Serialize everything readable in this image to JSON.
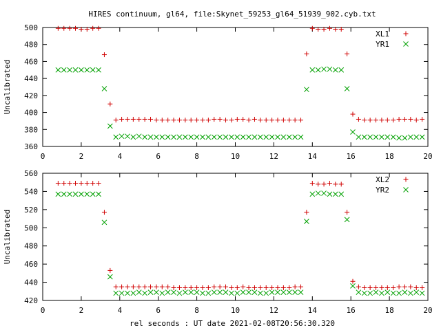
{
  "title": "HIRES continuum, gl64, file:Skynet_59253_gl64_51939_902.cyb.txt",
  "xlabel": "rel seconds : UT date 2021-02-08T20:56:30.320",
  "colors": {
    "first_series": "#d00000",
    "second_series": "#00a000",
    "axes": "#000000"
  },
  "chart_data": [
    {
      "type": "scatter",
      "ylabel": "Uncalibrated",
      "xlim": [
        0,
        20
      ],
      "ylim": [
        360,
        500
      ],
      "xticks": [
        0,
        2,
        4,
        6,
        8,
        10,
        12,
        14,
        16,
        18,
        20
      ],
      "yticks": [
        360,
        380,
        400,
        420,
        440,
        460,
        480,
        500
      ],
      "legend_position": "top-right",
      "series": [
        {
          "name": "XL1",
          "marker": "plus",
          "x": [
            0.8,
            1.1,
            1.4,
            1.7,
            2.0,
            2.3,
            2.6,
            2.9,
            3.2,
            3.5,
            3.8,
            4.1,
            4.4,
            4.7,
            5.0,
            5.3,
            5.6,
            5.9,
            6.2,
            6.5,
            6.8,
            7.1,
            7.4,
            7.7,
            8.0,
            8.3,
            8.6,
            8.9,
            9.2,
            9.5,
            9.8,
            10.1,
            10.4,
            10.7,
            11.0,
            11.3,
            11.6,
            11.9,
            12.2,
            12.5,
            12.8,
            13.1,
            13.4,
            13.7,
            14.0,
            14.3,
            14.6,
            14.9,
            15.2,
            15.5,
            15.8,
            16.1,
            16.4,
            16.7,
            17.0,
            17.3,
            17.6,
            17.9,
            18.2,
            18.5,
            18.8,
            19.1,
            19.4,
            19.7
          ],
          "y": [
            499,
            499,
            499,
            499,
            498,
            498,
            499,
            499,
            468,
            410,
            391,
            392,
            392,
            392,
            392,
            392,
            392,
            391,
            391,
            391,
            391,
            391,
            391,
            391,
            391,
            391,
            391,
            392,
            392,
            391,
            391,
            392,
            392,
            391,
            392,
            391,
            391,
            391,
            391,
            391,
            391,
            391,
            391,
            469,
            499,
            498,
            498,
            499,
            498,
            498,
            469,
            398,
            392,
            391,
            391,
            391,
            391,
            391,
            391,
            392,
            392,
            392,
            391,
            392
          ]
        },
        {
          "name": "YR1",
          "marker": "cross",
          "x": [
            0.8,
            1.1,
            1.4,
            1.7,
            2.0,
            2.3,
            2.6,
            2.9,
            3.2,
            3.5,
            3.8,
            4.1,
            4.4,
            4.7,
            5.0,
            5.3,
            5.6,
            5.9,
            6.2,
            6.5,
            6.8,
            7.1,
            7.4,
            7.7,
            8.0,
            8.3,
            8.6,
            8.9,
            9.2,
            9.5,
            9.8,
            10.1,
            10.4,
            10.7,
            11.0,
            11.3,
            11.6,
            11.9,
            12.2,
            12.5,
            12.8,
            13.1,
            13.4,
            13.7,
            14.0,
            14.3,
            14.6,
            14.9,
            15.2,
            15.5,
            15.8,
            16.1,
            16.4,
            16.7,
            17.0,
            17.3,
            17.6,
            17.9,
            18.2,
            18.5,
            18.8,
            19.1,
            19.4,
            19.7
          ],
          "y": [
            450,
            450,
            450,
            450,
            450,
            450,
            450,
            450,
            428,
            384,
            371,
            372,
            372,
            371,
            372,
            371,
            371,
            371,
            371,
            371,
            371,
            371,
            371,
            371,
            371,
            371,
            371,
            371,
            371,
            371,
            371,
            371,
            371,
            371,
            371,
            371,
            371,
            371,
            371,
            371,
            371,
            371,
            371,
            427,
            450,
            450,
            451,
            451,
            450,
            450,
            428,
            377,
            371,
            371,
            371,
            371,
            371,
            371,
            371,
            370,
            370,
            371,
            371,
            371
          ]
        }
      ]
    },
    {
      "type": "scatter",
      "ylabel": "Uncalibrated",
      "xlim": [
        0,
        20
      ],
      "ylim": [
        420,
        560
      ],
      "xticks": [
        0,
        2,
        4,
        6,
        8,
        10,
        12,
        14,
        16,
        18,
        20
      ],
      "yticks": [
        420,
        440,
        460,
        480,
        500,
        520,
        540,
        560
      ],
      "legend_position": "top-right",
      "series": [
        {
          "name": "XL2",
          "marker": "plus",
          "x": [
            0.8,
            1.1,
            1.4,
            1.7,
            2.0,
            2.3,
            2.6,
            2.9,
            3.2,
            3.5,
            3.8,
            4.1,
            4.4,
            4.7,
            5.0,
            5.3,
            5.6,
            5.9,
            6.2,
            6.5,
            6.8,
            7.1,
            7.4,
            7.7,
            8.0,
            8.3,
            8.6,
            8.9,
            9.2,
            9.5,
            9.8,
            10.1,
            10.4,
            10.7,
            11.0,
            11.3,
            11.6,
            11.9,
            12.2,
            12.5,
            12.8,
            13.1,
            13.4,
            13.7,
            14.0,
            14.3,
            14.6,
            14.9,
            15.2,
            15.5,
            15.8,
            16.1,
            16.4,
            16.7,
            17.0,
            17.3,
            17.6,
            17.9,
            18.2,
            18.5,
            18.8,
            19.1,
            19.4,
            19.7
          ],
          "y": [
            549,
            549,
            549,
            549,
            549,
            549,
            549,
            549,
            517,
            453,
            435,
            435,
            435,
            435,
            435,
            435,
            435,
            435,
            435,
            435,
            434,
            434,
            434,
            434,
            434,
            434,
            434,
            435,
            435,
            435,
            434,
            434,
            435,
            434,
            434,
            434,
            434,
            434,
            434,
            434,
            434,
            435,
            435,
            517,
            549,
            548,
            548,
            549,
            548,
            548,
            517,
            441,
            435,
            434,
            434,
            434,
            434,
            434,
            434,
            435,
            435,
            435,
            434,
            434
          ]
        },
        {
          "name": "YR2",
          "marker": "cross",
          "x": [
            0.8,
            1.1,
            1.4,
            1.7,
            2.0,
            2.3,
            2.6,
            2.9,
            3.2,
            3.5,
            3.8,
            4.1,
            4.4,
            4.7,
            5.0,
            5.3,
            5.6,
            5.9,
            6.2,
            6.5,
            6.8,
            7.1,
            7.4,
            7.7,
            8.0,
            8.3,
            8.6,
            8.9,
            9.2,
            9.5,
            9.8,
            10.1,
            10.4,
            10.7,
            11.0,
            11.3,
            11.6,
            11.9,
            12.2,
            12.5,
            12.8,
            13.1,
            13.4,
            13.7,
            14.0,
            14.3,
            14.6,
            14.9,
            15.2,
            15.5,
            15.8,
            16.1,
            16.4,
            16.7,
            17.0,
            17.3,
            17.6,
            17.9,
            18.2,
            18.5,
            18.8,
            19.1,
            19.4,
            19.7
          ],
          "y": [
            537,
            537,
            537,
            537,
            537,
            537,
            537,
            537,
            506,
            446,
            428,
            428,
            428,
            428,
            429,
            428,
            429,
            429,
            428,
            429,
            429,
            428,
            429,
            429,
            429,
            428,
            428,
            429,
            429,
            429,
            428,
            428,
            429,
            429,
            429,
            428,
            428,
            429,
            429,
            429,
            429,
            429,
            429,
            507,
            537,
            538,
            538,
            537,
            537,
            537,
            509,
            436,
            429,
            428,
            428,
            429,
            428,
            429,
            428,
            428,
            429,
            428,
            429,
            428
          ]
        }
      ]
    }
  ]
}
